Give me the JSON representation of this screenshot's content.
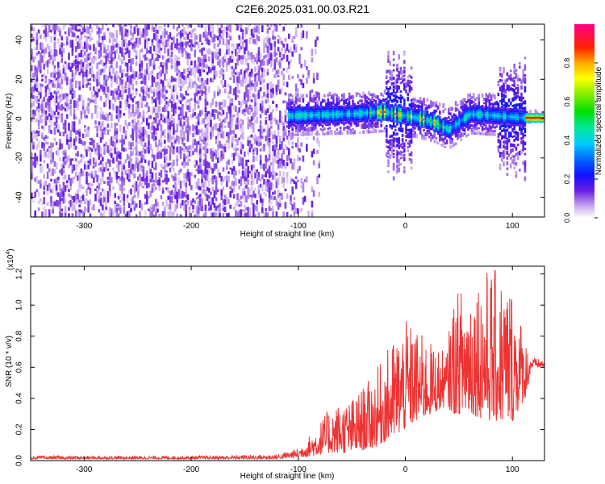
{
  "title": "C2E6.2025.031.00.03.R21",
  "chart_data": [
    {
      "type": "heatmap",
      "title": "C2E6.2025.031.00.03.R21",
      "xlabel": "Height of straight line (km)",
      "ylabel": "Frequency (Hz)",
      "xlim": [
        -350,
        130
      ],
      "ylim": [
        -50,
        48
      ],
      "x_ticks": [
        -300,
        -200,
        -100,
        0,
        100
      ],
      "y_ticks": [
        -40,
        -20,
        0,
        20,
        40
      ],
      "colorbar": {
        "label": "Normalized spectral amplitude",
        "range": [
          0,
          1
        ],
        "ticks": [
          0.0,
          0.2,
          0.4,
          0.6,
          0.8
        ]
      },
      "description_values": {
        "noise_region_x": [
          -350,
          -80
        ],
        "signal_band_x": [
          -110,
          130
        ],
        "signal_center_freq": [
          {
            "x": -110,
            "f": 1
          },
          {
            "x": -50,
            "f": 2
          },
          {
            "x": -20,
            "f": 3
          },
          {
            "x": -10,
            "f": 2
          },
          {
            "x": 10,
            "f": 0
          },
          {
            "x": 25,
            "f": -2
          },
          {
            "x": 40,
            "f": -6
          },
          {
            "x": 60,
            "f": 2
          },
          {
            "x": 110,
            "f": 0
          },
          {
            "x": 130,
            "f": 0
          }
        ]
      }
    },
    {
      "type": "line",
      "xlabel": "Height of straight line (km)",
      "ylabel": "SNR (10 * v/v)",
      "y_multiplier_label": "(x10",
      "y_multiplier_exp": "4",
      "xlim": [
        -350,
        130
      ],
      "ylim": [
        0,
        1.25
      ],
      "x_ticks": [
        -300,
        -200,
        -100,
        0,
        100
      ],
      "y_ticks": [
        0.0,
        0.2,
        0.4,
        0.6,
        0.8,
        1.0,
        1.2
      ],
      "series": [
        {
          "color": "#ee3333",
          "envelope": [
            {
              "x": -350,
              "low": 0.01,
              "high": 0.03
            },
            {
              "x": -200,
              "low": 0.01,
              "high": 0.03
            },
            {
              "x": -120,
              "low": 0.01,
              "high": 0.04
            },
            {
              "x": -100,
              "low": 0.02,
              "high": 0.08
            },
            {
              "x": -85,
              "low": 0.03,
              "high": 0.2
            },
            {
              "x": -70,
              "low": 0.05,
              "high": 0.35
            },
            {
              "x": -50,
              "low": 0.05,
              "high": 0.4
            },
            {
              "x": -30,
              "low": 0.08,
              "high": 0.55
            },
            {
              "x": -10,
              "low": 0.15,
              "high": 0.8
            },
            {
              "x": 0,
              "low": 0.2,
              "high": 0.9
            },
            {
              "x": 10,
              "low": 0.25,
              "high": 0.85
            },
            {
              "x": 25,
              "low": 0.3,
              "high": 0.75
            },
            {
              "x": 38,
              "low": 0.35,
              "high": 0.7
            },
            {
              "x": 45,
              "low": 0.3,
              "high": 1.05
            },
            {
              "x": 60,
              "low": 0.3,
              "high": 1.2
            },
            {
              "x": 80,
              "low": 0.25,
              "high": 1.25
            },
            {
              "x": 100,
              "low": 0.25,
              "high": 1.15
            },
            {
              "x": 112,
              "low": 0.4,
              "high": 0.8
            },
            {
              "x": 118,
              "low": 0.6,
              "high": 0.66
            },
            {
              "x": 130,
              "low": 0.6,
              "high": 0.65
            }
          ]
        }
      ]
    }
  ]
}
